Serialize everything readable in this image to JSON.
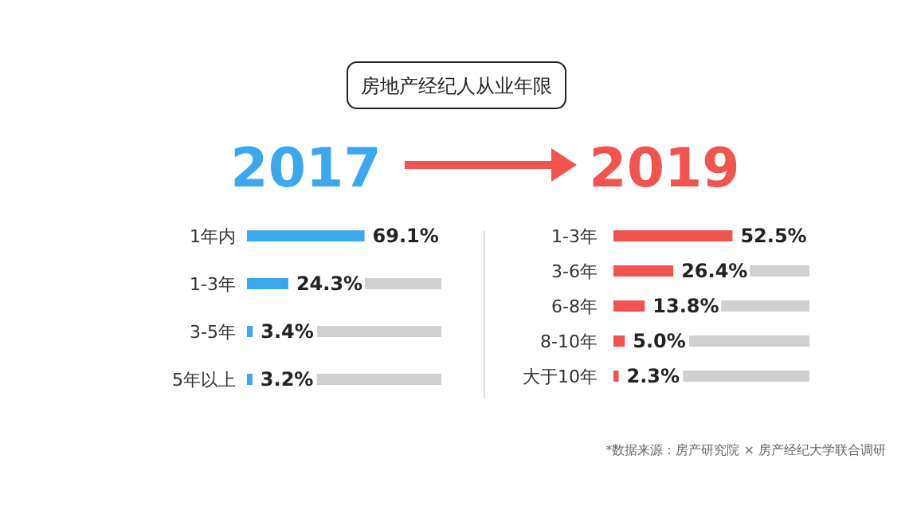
{
  "chart_data": [
    {
      "type": "bar",
      "orientation": "horizontal",
      "title": "房地产经纪人从业年限",
      "subtitle": "2017",
      "categories": [
        "1年内",
        "1-3年",
        "3-5年",
        "5年以上"
      ],
      "values": [
        69.1,
        24.3,
        3.4,
        3.2
      ],
      "value_labels": [
        "69.1%",
        "24.3%",
        "3.4%",
        "3.2%"
      ],
      "color": "#3ba7ef"
    },
    {
      "type": "bar",
      "orientation": "horizontal",
      "subtitle": "2019",
      "categories": [
        "1-3年",
        "3-6年",
        "6-8年",
        "8-10年",
        "大于10年"
      ],
      "values": [
        52.5,
        26.4,
        13.8,
        5.0,
        2.3
      ],
      "value_labels": [
        "52.5%",
        "26.4%",
        "13.8%",
        "5.0%",
        "2.3%"
      ],
      "color": "#f1534f",
      "annotations": [
        "*数据来源：房产研究院 × 房产经纪大学联合调研"
      ]
    }
  ]
}
